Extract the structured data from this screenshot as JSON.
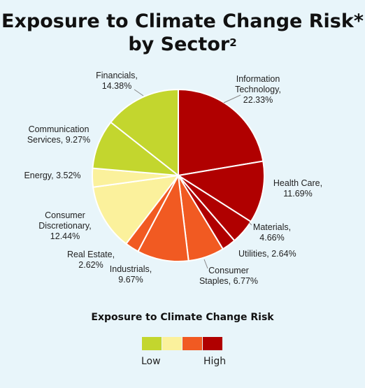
{
  "title_line1": "Exposure to Climate Change Risk*",
  "title_line2": "by Sector",
  "title_superscript": "2",
  "chart_data": {
    "type": "pie",
    "title": "Exposure to Climate Change Risk* by Sector²",
    "slices": [
      {
        "label_lines": [
          "Information",
          "Technology,",
          "22.33%"
        ],
        "name": "Information Technology",
        "value": 22.33,
        "color": "#b00000"
      },
      {
        "label_lines": [
          "Health Care,",
          "11.69%"
        ],
        "name": "Health Care",
        "value": 11.69,
        "color": "#b00000"
      },
      {
        "label_lines": [
          "Materials,",
          "4.66%"
        ],
        "name": "Materials",
        "value": 4.66,
        "color": "#b00000"
      },
      {
        "label_lines": [
          "Utilities, 2.64%"
        ],
        "name": "Utilities",
        "value": 2.64,
        "color": "#b00000"
      },
      {
        "label_lines": [
          "Consumer",
          "Staples, 6.77%"
        ],
        "name": "Consumer Staples",
        "value": 6.77,
        "color": "#f15a22"
      },
      {
        "label_lines": [
          "Industrials,",
          "9.67%"
        ],
        "name": "Industrials",
        "value": 9.67,
        "color": "#f15a22"
      },
      {
        "label_lines": [
          "Real Estate,",
          "2.62%"
        ],
        "name": "Real Estate",
        "value": 2.62,
        "color": "#f15a22"
      },
      {
        "label_lines": [
          "Consumer",
          "Discretionary,",
          "12.44%"
        ],
        "name": "Consumer Discretionary",
        "value": 12.44,
        "color": "#fbf19c"
      },
      {
        "label_lines": [
          "Energy, 3.52%"
        ],
        "name": "Energy",
        "value": 3.52,
        "color": "#fbf19c"
      },
      {
        "label_lines": [
          "Communication",
          "Services, 9.27%"
        ],
        "name": "Communication Services",
        "value": 9.27,
        "color": "#c3d62e"
      },
      {
        "label_lines": [
          "Financials,",
          "14.38%"
        ],
        "name": "Financials",
        "value": 14.38,
        "color": "#c3d62e"
      }
    ]
  },
  "legend": {
    "title": "Exposure to Climate Change Risk",
    "colors": [
      "#c3d62e",
      "#fbf19c",
      "#f15a22",
      "#b00000"
    ],
    "low_label": "Low",
    "high_label": "High"
  }
}
